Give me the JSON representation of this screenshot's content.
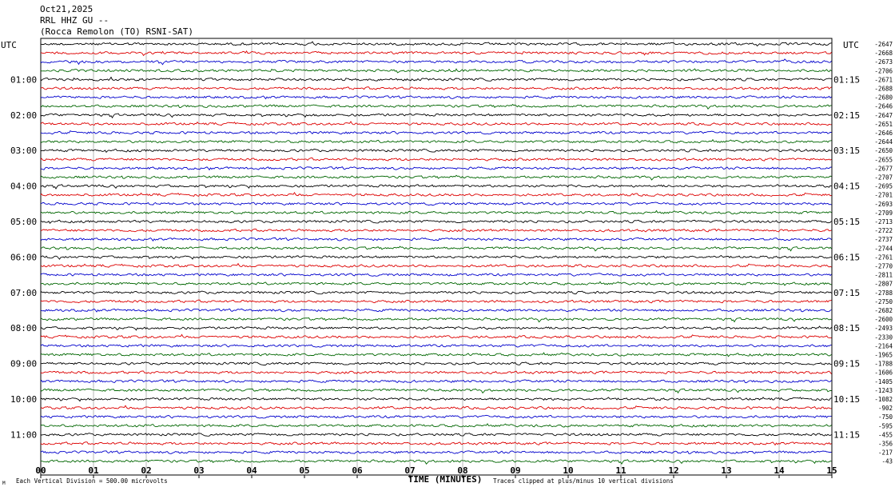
{
  "header": {
    "date": "Oct21,2025",
    "station": "RRL HHZ GU --",
    "location": "(Rocca Remolon (TO) RSNI-SAT)"
  },
  "chart_data": {
    "type": "line",
    "title": "",
    "xlabel": "TIME (MINUTES)",
    "x_ticks": [
      "00",
      "01",
      "02",
      "03",
      "04",
      "05",
      "06",
      "07",
      "08",
      "09",
      "10",
      "11",
      "12",
      "13",
      "14",
      "15"
    ],
    "xlim": [
      0,
      15
    ],
    "left_axis_label": "UTC",
    "right_axis_label": "UTC",
    "left_hour_labels": [
      "01:00",
      "02:00",
      "03:00",
      "04:00",
      "05:00",
      "06:00",
      "07:00",
      "08:00",
      "09:00",
      "10:00",
      "11:00"
    ],
    "right_hour_labels": [
      "01:15",
      "02:15",
      "03:15",
      "04:15",
      "05:15",
      "06:15",
      "07:15",
      "08:15",
      "09:15",
      "10:15",
      "11:15"
    ],
    "trace_offsets": [
      "-2647",
      "-2668",
      "-2673",
      "-2706",
      "-2671",
      "-2688",
      "-2680",
      "-2646",
      "-2647",
      "-2651",
      "-2646",
      "-2644",
      "-2650",
      "-2655",
      "-2677",
      "-2707",
      "-2695",
      "-2701",
      "-2693",
      "-2709",
      "-2713",
      "-2722",
      "-2737",
      "-2744",
      "-2761",
      "-2770",
      "-2811",
      "-2807",
      "-2788",
      "-2750",
      "-2682",
      "-2600",
      "-2493",
      "-2330",
      "-2164",
      "-1965",
      "-1788",
      "-1606",
      "-1405",
      "-1243",
      "-1082",
      "-902",
      "-750",
      "-595",
      "-455",
      "-356",
      "-217",
      "-43"
    ],
    "trace_colors": [
      "#000000",
      "#dd0000",
      "#0000cc",
      "#006600"
    ],
    "grid": true,
    "footer_left": "Each Vertical Division =  500.00 microvolts",
    "footer_right": "Traces clipped at plus/minus 10 vertical divisions",
    "corner_mark": "M"
  }
}
